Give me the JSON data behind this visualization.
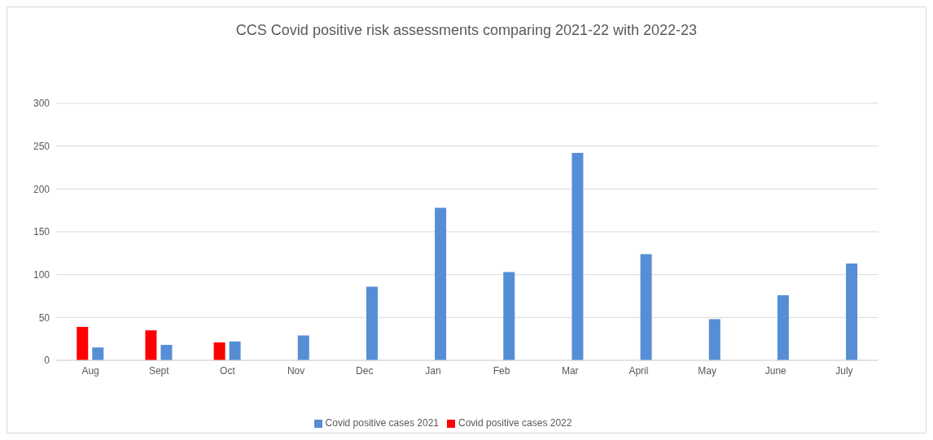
{
  "chart_data": {
    "type": "bar",
    "title": "CCS Covid positive risk assessments comparing 2021-22 with 2022-23",
    "categories": [
      "Aug",
      "Sept",
      "Oct",
      "Nov",
      "Dec",
      "Jan",
      "Feb",
      "Mar",
      "April",
      "May",
      "June",
      "July"
    ],
    "series": [
      {
        "name": "Covid positive cases 2022",
        "color": "#ff0000",
        "values": [
          39,
          35,
          21,
          null,
          null,
          null,
          null,
          null,
          null,
          null,
          null,
          null
        ]
      },
      {
        "name": "Covid positive cases 2021",
        "color": "#558ed5",
        "values": [
          15,
          18,
          22,
          29,
          86,
          178,
          103,
          242,
          124,
          48,
          76,
          113
        ]
      }
    ],
    "ylim": [
      0,
      300
    ],
    "yticks": [
      0,
      50,
      100,
      150,
      200,
      250,
      300
    ],
    "grid": "y",
    "legend": "bottom"
  }
}
